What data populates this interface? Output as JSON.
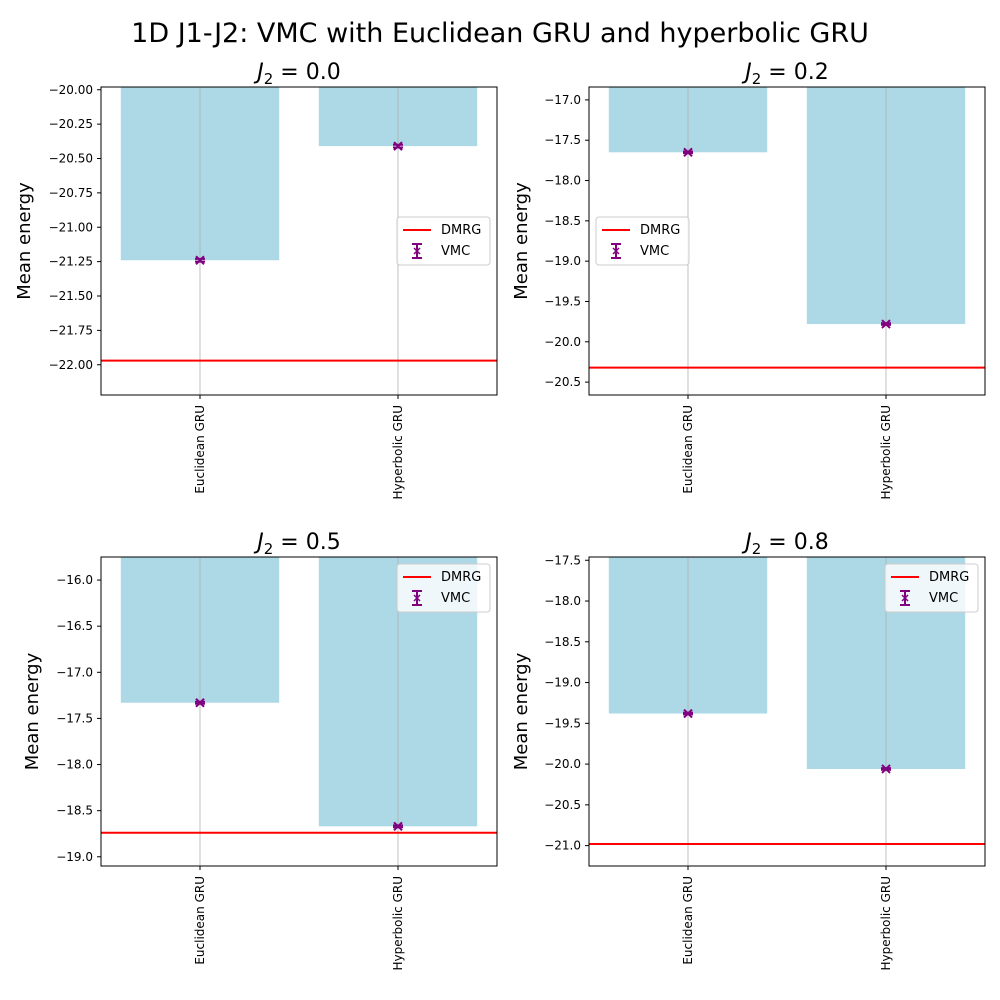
{
  "figure": {
    "title": "1D J1-J2: VMC with Euclidean GRU and hyperbolic GRU"
  },
  "colors": {
    "bar": "#add8e6",
    "dmrg": "#ff0000",
    "vmc": "#800080",
    "grid": "#b0b0b0"
  },
  "legend": {
    "dmrg_label": "DMRG",
    "vmc_label": "VMC"
  },
  "chart_data": [
    {
      "type": "bar",
      "title_symbol": "J",
      "title_subscript": "2",
      "title_value": " = 0.0",
      "ylabel": "Mean energy",
      "categories": [
        "Euclidean GRU",
        "Hyperbolic GRU"
      ],
      "values": [
        -21.24,
        -20.41
      ],
      "errors": [
        0.01,
        0.01
      ],
      "dmrg": -21.97,
      "ylim": [
        -22.22,
        -19.98
      ],
      "yticks": [
        -20.0,
        -20.25,
        -20.5,
        -20.75,
        -21.0,
        -21.25,
        -21.5,
        -21.75,
        -22.0
      ],
      "ytick_labels": [
        "−20.00",
        "−20.25",
        "−20.50",
        "−20.75",
        "−21.00",
        "−21.25",
        "−21.50",
        "−21.75",
        "−22.00"
      ],
      "legend_position": "center-right"
    },
    {
      "type": "bar",
      "title_symbol": "J",
      "title_subscript": "2",
      "title_value": " = 0.2",
      "ylabel": "Mean energy",
      "categories": [
        "Euclidean GRU",
        "Hyperbolic GRU"
      ],
      "values": [
        -17.65,
        -19.78
      ],
      "errors": [
        0.01,
        0.01
      ],
      "dmrg": -20.32,
      "ylim": [
        -20.66,
        -16.84
      ],
      "yticks": [
        -17.0,
        -17.5,
        -18.0,
        -18.5,
        -19.0,
        -19.5,
        -20.0,
        -20.5
      ],
      "ytick_labels": [
        "−17.0",
        "−17.5",
        "−18.0",
        "−18.5",
        "−19.0",
        "−19.5",
        "−20.0",
        "−20.5"
      ],
      "legend_position": "center-left"
    },
    {
      "type": "bar",
      "title_symbol": "J",
      "title_subscript": "2",
      "title_value": " = 0.5",
      "ylabel": "Mean energy",
      "categories": [
        "Euclidean GRU",
        "Hyperbolic GRU"
      ],
      "values": [
        -17.33,
        -18.67
      ],
      "errors": [
        0.01,
        0.01
      ],
      "dmrg": -18.74,
      "ylim": [
        -19.1,
        -15.75
      ],
      "yticks": [
        -16.0,
        -16.5,
        -17.0,
        -17.5,
        -18.0,
        -18.5,
        -19.0
      ],
      "ytick_labels": [
        "−16.0",
        "−16.5",
        "−17.0",
        "−17.5",
        "−18.0",
        "−18.5",
        "−19.0"
      ],
      "legend_position": "upper-right"
    },
    {
      "type": "bar",
      "title_symbol": "J",
      "title_subscript": "2",
      "title_value": " = 0.8",
      "ylabel": "Mean energy",
      "categories": [
        "Euclidean GRU",
        "Hyperbolic GRU"
      ],
      "values": [
        -19.38,
        -20.06
      ],
      "errors": [
        0.01,
        0.01
      ],
      "dmrg": -20.98,
      "ylim": [
        -21.25,
        -17.46
      ],
      "yticks": [
        -17.5,
        -18.0,
        -18.5,
        -19.0,
        -19.5,
        -20.0,
        -20.5,
        -21.0
      ],
      "ytick_labels": [
        "−17.5",
        "−18.0",
        "−18.5",
        "−19.0",
        "−19.5",
        "−20.0",
        "−20.5",
        "−21.0"
      ],
      "legend_position": "upper-right"
    }
  ]
}
